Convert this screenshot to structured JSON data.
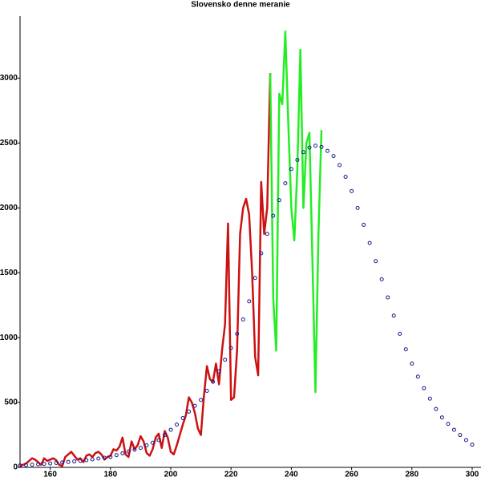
{
  "chart_data": {
    "type": "line",
    "title": "Slovensko denne meranie",
    "xlim": [
      150,
      300
    ],
    "ylim": [
      0,
      3430
    ],
    "xticks": [
      160,
      180,
      200,
      220,
      240,
      260,
      280,
      300
    ],
    "yticks": [
      0,
      500,
      1000,
      1500,
      2000,
      2500,
      3000
    ],
    "series": [
      {
        "color": "#cc1111",
        "style": "line",
        "x": [
          150,
          151,
          152,
          153,
          154,
          155,
          156,
          157,
          158,
          159,
          160,
          161,
          162,
          163,
          164,
          165,
          166,
          167,
          168,
          169,
          170,
          171,
          172,
          173,
          174,
          175,
          176,
          177,
          178,
          179,
          180,
          181,
          182,
          183,
          184,
          185,
          186,
          187,
          188,
          189,
          190,
          191,
          192,
          193,
          194,
          195,
          196,
          197,
          198,
          199,
          200,
          201,
          202,
          203,
          204,
          205,
          206,
          207,
          208,
          209,
          210,
          211,
          212,
          213,
          214,
          215,
          216,
          217,
          218,
          219,
          220,
          221,
          222,
          223,
          224,
          225,
          226,
          227,
          228,
          229,
          230,
          231,
          232,
          233
        ],
        "values": [
          10,
          20,
          30,
          50,
          70,
          60,
          40,
          20,
          70,
          50,
          60,
          70,
          55,
          20,
          10,
          80,
          100,
          120,
          90,
          60,
          70,
          40,
          90,
          100,
          80,
          110,
          120,
          100,
          60,
          80,
          90,
          140,
          130,
          160,
          230,
          100,
          80,
          200,
          140,
          170,
          240,
          200,
          110,
          90,
          140,
          230,
          260,
          150,
          280,
          230,
          120,
          100,
          170,
          250,
          330,
          400,
          540,
          500,
          420,
          300,
          250,
          550,
          780,
          680,
          660,
          800,
          640,
          900,
          1100,
          1880,
          520,
          540,
          900,
          1800,
          2000,
          2070,
          1950,
          1500,
          850,
          710,
          2200,
          1800,
          2000,
          3040
        ]
      },
      {
        "color": "#22ee22",
        "style": "line",
        "x": [
          233,
          234,
          235,
          236,
          237,
          238,
          239,
          240,
          241,
          242,
          243,
          244,
          245,
          246,
          247,
          248,
          249,
          250
        ],
        "values": [
          3040,
          1300,
          900,
          2880,
          2800,
          3360,
          2650,
          2000,
          1750,
          2300,
          3220,
          2000,
          2500,
          2580,
          1600,
          580,
          1800,
          2600
        ]
      },
      {
        "color": "#1a1a8c",
        "style": "markers",
        "x": [
          150,
          152,
          154,
          156,
          158,
          160,
          162,
          164,
          166,
          168,
          170,
          172,
          174,
          176,
          178,
          180,
          182,
          184,
          186,
          188,
          190,
          192,
          194,
          196,
          198,
          200,
          202,
          204,
          206,
          208,
          210,
          212,
          214,
          216,
          218,
          220,
          222,
          224,
          226,
          228,
          230,
          232,
          234,
          236,
          238,
          240,
          242,
          244,
          246,
          248,
          250,
          252,
          254,
          256,
          258,
          260,
          262,
          264,
          266,
          268,
          270,
          272,
          274,
          276,
          278,
          280,
          282,
          284,
          286,
          288,
          290,
          292,
          294,
          296,
          298,
          300
        ],
        "values": [
          15,
          18,
          21,
          24,
          27,
          30,
          34,
          38,
          42,
          46,
          50,
          56,
          62,
          68,
          74,
          80,
          94,
          108,
          122,
          136,
          150,
          170,
          190,
          210,
          250,
          290,
          330,
          380,
          430,
          475,
          520,
          590,
          660,
          740,
          830,
          920,
          1030,
          1140,
          1280,
          1460,
          1650,
          1800,
          1940,
          2060,
          2190,
          2300,
          2370,
          2430,
          2465,
          2480,
          2470,
          2440,
          2400,
          2330,
          2240,
          2130,
          2000,
          1870,
          1730,
          1590,
          1450,
          1310,
          1170,
          1030,
          910,
          800,
          700,
          610,
          530,
          450,
          385,
          335,
          290,
          250,
          210,
          175
        ]
      }
    ]
  }
}
